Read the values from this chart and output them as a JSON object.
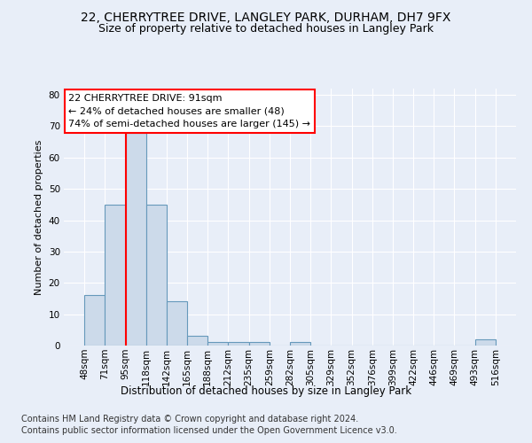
{
  "title1": "22, CHERRYTREE DRIVE, LANGLEY PARK, DURHAM, DH7 9FX",
  "title2": "Size of property relative to detached houses in Langley Park",
  "xlabel": "Distribution of detached houses by size in Langley Park",
  "ylabel": "Number of detached properties",
  "bar_values": [
    16,
    45,
    68,
    45,
    14,
    3,
    1,
    1,
    1,
    0,
    1,
    0,
    0,
    0,
    0,
    0,
    0,
    0,
    0,
    2
  ],
  "bar_labels": [
    "48sqm",
    "71sqm",
    "95sqm",
    "118sqm",
    "142sqm",
    "165sqm",
    "188sqm",
    "212sqm",
    "235sqm",
    "259sqm",
    "282sqm",
    "305sqm",
    "329sqm",
    "352sqm",
    "376sqm",
    "399sqm",
    "422sqm",
    "446sqm",
    "469sqm",
    "493sqm",
    "516sqm"
  ],
  "bar_color": "#ccdaea",
  "bar_edge_color": "#6699bb",
  "property_line_x": 2,
  "property_line_color": "red",
  "annotation_line1": "22 CHERRYTREE DRIVE: 91sqm",
  "annotation_line2": "← 24% of detached houses are smaller (48)",
  "annotation_line3": "74% of semi-detached houses are larger (145) →",
  "annotation_box_color": "white",
  "annotation_box_edge": "red",
  "ylim": [
    0,
    82
  ],
  "yticks": [
    0,
    10,
    20,
    30,
    40,
    50,
    60,
    70,
    80
  ],
  "background_color": "#e8eef8",
  "grid_color": "white",
  "footnote_line1": "Contains HM Land Registry data © Crown copyright and database right 2024.",
  "footnote_line2": "Contains public sector information licensed under the Open Government Licence v3.0.",
  "title1_fontsize": 10,
  "title2_fontsize": 9,
  "xlabel_fontsize": 8.5,
  "ylabel_fontsize": 8,
  "tick_fontsize": 7.5,
  "annotation_fontsize": 8,
  "footnote_fontsize": 7
}
